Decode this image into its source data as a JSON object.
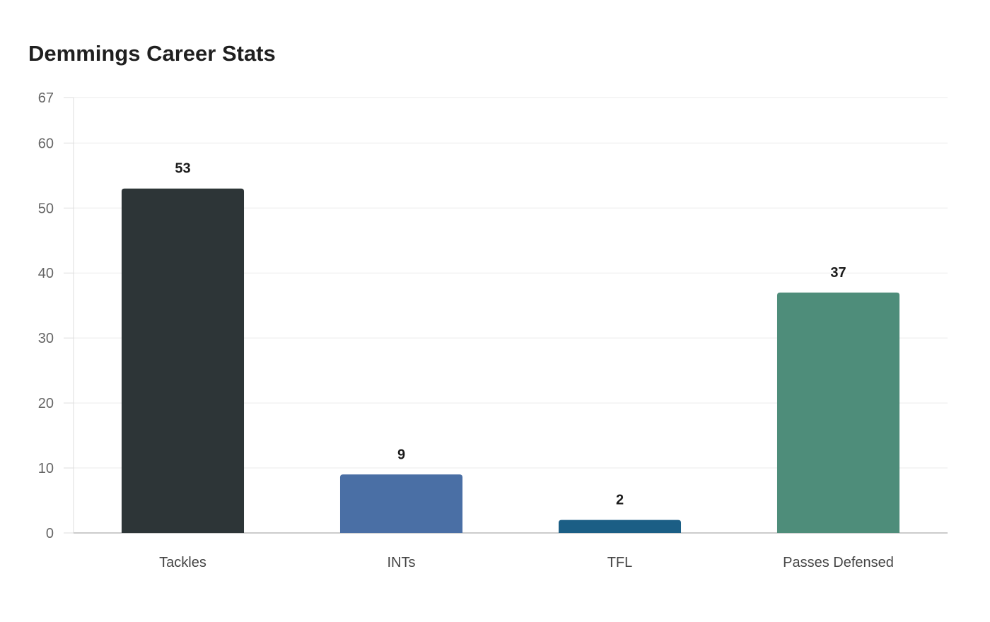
{
  "chart_data": {
    "type": "bar",
    "title": "Demmings Career Stats",
    "categories": [
      "Tackles",
      "INTs",
      "TFL",
      "Passes Defensed"
    ],
    "values": [
      53,
      9,
      2,
      37
    ],
    "colors": [
      "#2d3537",
      "#4a6fa5",
      "#1b5e85",
      "#4e8d7a"
    ],
    "ylim": [
      0,
      67
    ],
    "yticks": [
      0,
      10,
      20,
      30,
      40,
      50,
      60,
      67
    ],
    "xlabel": "",
    "ylabel": "",
    "grid": true,
    "legend": "none"
  }
}
